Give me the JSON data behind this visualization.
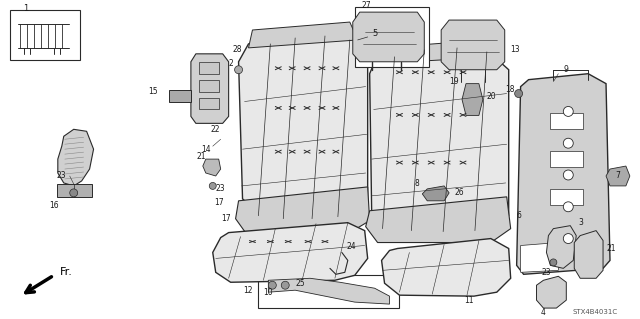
{
  "background_color": "#ffffff",
  "part_code": "STX4B4031C",
  "fig_width": 6.4,
  "fig_height": 3.19,
  "dpi": 100,
  "line_color": "#2a2a2a",
  "fill_light": "#e8e8e8",
  "fill_mid": "#d0d0d0",
  "fill_dark": "#b0b0b0"
}
